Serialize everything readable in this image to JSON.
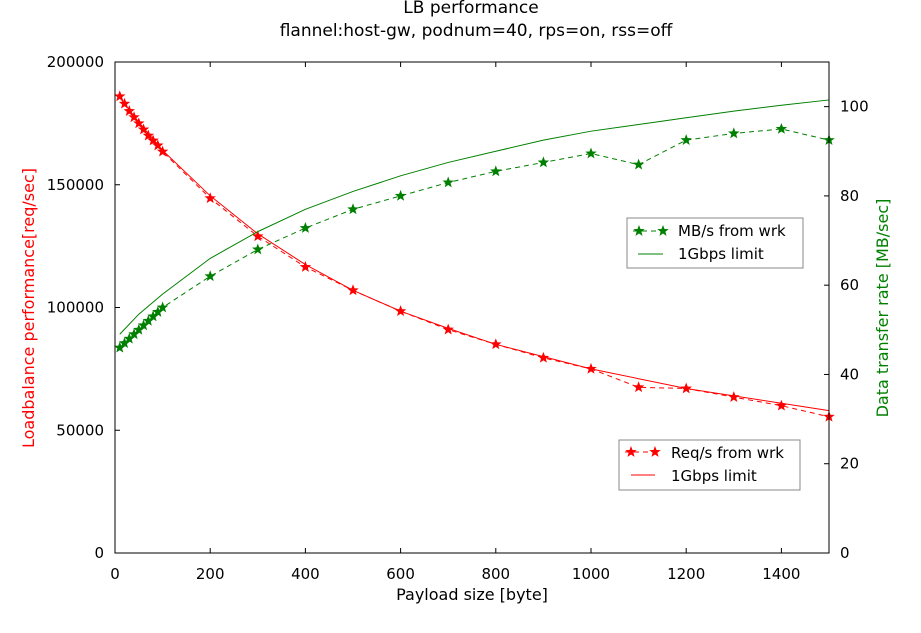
{
  "chart_data": {
    "type": "line",
    "title": "LB performance",
    "subtitle": "flannel:host-gw, podnum=40, rps=on, rss=off",
    "xlabel": "Payload size [byte]",
    "ylabel_left": "Loadbalance performance[req/sec]",
    "ylabel_right": "Data transfer rate [MB/sec]",
    "xlim": [
      0,
      1500
    ],
    "ylim_left": [
      0,
      200000
    ],
    "ylim_right": [
      0,
      110
    ],
    "x_ticks": [
      0,
      200,
      400,
      600,
      800,
      1000,
      1200,
      1400
    ],
    "y_left_ticks": [
      0,
      50000,
      100000,
      150000,
      200000
    ],
    "y_right_ticks": [
      0,
      20,
      40,
      60,
      80,
      100
    ],
    "colors": {
      "left": "#ff0000",
      "right": "#008000"
    },
    "series": [
      {
        "name": "Req/s from wrk",
        "axis": "left",
        "color": "#ff0000",
        "style": "dashed-star",
        "x": [
          10,
          20,
          30,
          40,
          50,
          60,
          70,
          80,
          90,
          100,
          200,
          300,
          400,
          500,
          600,
          700,
          800,
          900,
          1000,
          1100,
          1200,
          1300,
          1400,
          1500
        ],
        "y": [
          186000,
          183000,
          180000,
          177500,
          175000,
          172500,
          170000,
          168000,
          166000,
          163500,
          144500,
          129000,
          116500,
          107000,
          98500,
          91000,
          85000,
          79500,
          75000,
          67500,
          67000,
          63500,
          60000,
          55500
        ]
      },
      {
        "name": "1Gbps limit",
        "axis": "left",
        "color": "#ff0000",
        "style": "solid",
        "x": [
          10,
          50,
          100,
          200,
          300,
          400,
          500,
          600,
          700,
          800,
          900,
          1000,
          1100,
          1200,
          1300,
          1400,
          1500
        ],
        "y": [
          185500,
          175500,
          164000,
          145500,
          130000,
          117500,
          107000,
          98500,
          91500,
          85000,
          80000,
          75000,
          71000,
          67000,
          64000,
          61000,
          58000
        ]
      },
      {
        "name": "MB/s from wrk",
        "axis": "right",
        "color": "#008000",
        "style": "dashed-star",
        "x": [
          10,
          20,
          30,
          40,
          50,
          60,
          70,
          80,
          90,
          100,
          200,
          300,
          400,
          500,
          600,
          700,
          800,
          900,
          1000,
          1100,
          1200,
          1300,
          1400,
          1500
        ],
        "y": [
          46,
          47,
          48,
          49,
          50,
          51,
          52,
          53,
          54,
          55,
          62,
          68,
          72.8,
          77,
          80,
          83,
          85.5,
          87.5,
          89.5,
          87,
          92.5,
          94,
          95,
          92.5
        ]
      },
      {
        "name": "1Gbps limit",
        "axis": "right",
        "color": "#008000",
        "style": "solid",
        "x": [
          10,
          50,
          100,
          150,
          200,
          300,
          400,
          500,
          600,
          700,
          800,
          900,
          1000,
          1100,
          1200,
          1300,
          1400,
          1500
        ],
        "y": [
          49,
          53.5,
          58,
          62,
          66,
          72,
          77,
          81,
          84.5,
          87.5,
          90,
          92.5,
          94.5,
          96,
          97.5,
          99,
          100.3,
          101.5
        ]
      }
    ],
    "legends": [
      {
        "placement": "center-right",
        "entries": [
          "MB/s from wrk",
          "1Gbps limit"
        ]
      },
      {
        "placement": "bottom-right",
        "entries": [
          "Req/s from wrk",
          "1Gbps limit"
        ]
      }
    ],
    "grid": false
  }
}
